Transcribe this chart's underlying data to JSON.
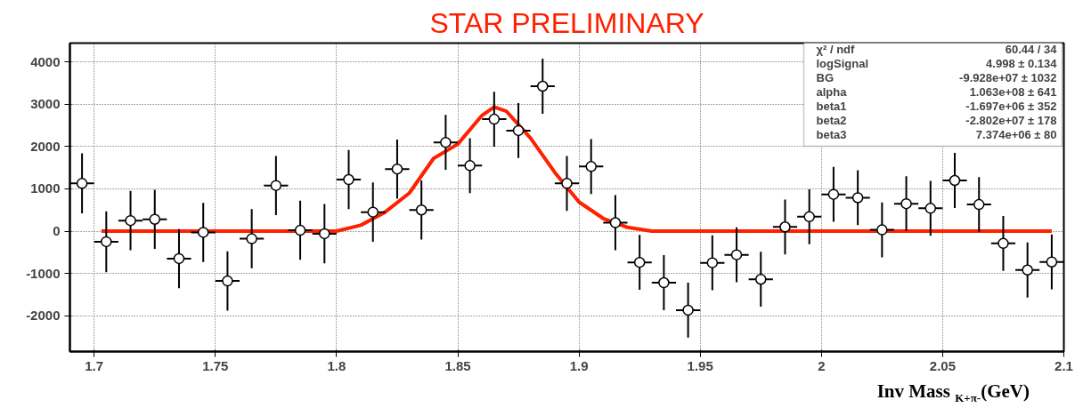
{
  "chart_data": {
    "type": "scatter",
    "title": "STAR PRELIMINARY",
    "xlabel": "Inv Mass $_{K+π-}$(GeV)",
    "xlim": [
      1.69,
      2.1
    ],
    "ylim": [
      -2850,
      4450
    ],
    "xticks": [
      1.7,
      1.75,
      1.8,
      1.85,
      1.9,
      1.95,
      2,
      2.05,
      2.1
    ],
    "yticks": [
      -2000,
      -1000,
      0,
      1000,
      2000,
      3000,
      4000
    ],
    "grid": true,
    "annotations": [
      "χ² / ndf",
      "60.44 / 34",
      "logSignal",
      "4.998 ± 0.134",
      "BG",
      "-9.928e+07 ± 1032",
      "alpha",
      "1.063e+08 ± 641",
      "beta1",
      "-1.697e+06 ± 352",
      "beta2",
      "-2.802e+07 ± 178",
      "beta3",
      "7.374e+06 ± 80"
    ],
    "series": [
      {
        "marker": "circle",
        "color": "#000000",
        "x": [
          1.695,
          1.705,
          1.715,
          1.725,
          1.735,
          1.745,
          1.755,
          1.765,
          1.775,
          1.785,
          1.795,
          1.805,
          1.815,
          1.825,
          1.835,
          1.845,
          1.855,
          1.865,
          1.875,
          1.885,
          1.895,
          1.905,
          1.915,
          1.925,
          1.935,
          1.945,
          1.955,
          1.965,
          1.975,
          1.985,
          1.995,
          2.005,
          2.015,
          2.025,
          2.035,
          2.045,
          2.055,
          2.065,
          2.075,
          2.085,
          2.095
        ],
        "values": [
          1130,
          -250,
          250,
          280,
          -650,
          -30,
          -1180,
          -180,
          1080,
          20,
          -60,
          1220,
          450,
          1470,
          500,
          2100,
          1550,
          2650,
          2380,
          3430,
          1130,
          1530,
          200,
          -740,
          -1220,
          -1870,
          -750,
          -560,
          -1140,
          100,
          340,
          870,
          790,
          30,
          650,
          540,
          1200,
          630,
          -290,
          -920,
          -730
        ],
        "errors": [
          710,
          720,
          700,
          700,
          700,
          700,
          700,
          700,
          700,
          700,
          700,
          700,
          700,
          700,
          700,
          650,
          650,
          650,
          650,
          650,
          650,
          650,
          650,
          650,
          650,
          650,
          650,
          650,
          650,
          650,
          650,
          650,
          650,
          650,
          650,
          650,
          650,
          650,
          650,
          650,
          650
        ],
        "xerrors": [
          0.005,
          0.005,
          0.005,
          0.005,
          0.005,
          0.005,
          0.005,
          0.005,
          0.005,
          0.005,
          0.005,
          0.005,
          0.005,
          0.005,
          0.005,
          0.005,
          0.005,
          0.005,
          0.005,
          0.005,
          0.005,
          0.005,
          0.005,
          0.005,
          0.005,
          0.005,
          0.005,
          0.005,
          0.005,
          0.005,
          0.005,
          0.005,
          0.005,
          0.005,
          0.005,
          0.005,
          0.005,
          0.005,
          0.005,
          0.005,
          0.005
        ]
      },
      {
        "type": "line",
        "color": "#ff2000",
        "line_style": "solid",
        "x": [
          1.703,
          1.8,
          1.81,
          1.82,
          1.83,
          1.84,
          1.85,
          1.86,
          1.865,
          1.87,
          1.88,
          1.89,
          1.9,
          1.91,
          1.92,
          1.93,
          2.095
        ],
        "values": [
          0,
          0,
          140,
          450,
          900,
          1720,
          2060,
          2740,
          2940,
          2840,
          2200,
          1390,
          690,
          300,
          90,
          0,
          0
        ]
      }
    ]
  }
}
